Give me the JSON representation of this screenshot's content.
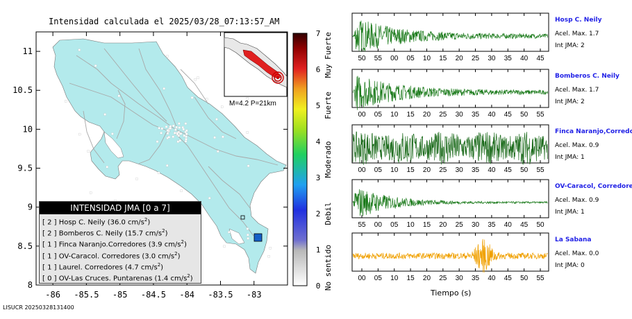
{
  "map": {
    "title": "Intensidad calculada el 2025/03/28_07:13:57_AM",
    "x_ticks": [
      "-86",
      "-85.5",
      "-85",
      "-84.5",
      "-84",
      "-83.5",
      "-83"
    ],
    "y_ticks": [
      "11",
      "10.5",
      "10",
      "9.5",
      "9",
      "8.5",
      "8"
    ],
    "inset_label": "M=4.2 P=21km",
    "bottom_id": "LISUCR 20250328131400",
    "colors": {
      "land": "#b3eaec",
      "sea": "#ffffff",
      "roads": "#a8a8a8",
      "station": "#1560c8"
    }
  },
  "colorbar": {
    "ticks": [
      "0",
      "1",
      "2",
      "3",
      "4",
      "5",
      "6",
      "7"
    ],
    "categories": [
      "No sentido",
      "Debil",
      "Moderado",
      "Fuerte",
      "Muy Fuerte"
    ]
  },
  "legend": {
    "title": "INTENSIDAD JMA [0 a 7]",
    "rows": [
      {
        "jma": "[ 2 ]",
        "text": "Hosp C. Neily (36.0 cm/s",
        "unit_exp": "2",
        "close": ")"
      },
      {
        "jma": "[ 2 ]",
        "text": "Bomberos C. Neily (15.7 cm/s",
        "unit_exp": "2",
        "close": ")"
      },
      {
        "jma": "[ 1 ]",
        "text": "Finca Naranjo.Corredores (3.9 cm/s",
        "unit_exp": "2",
        "close": ")"
      },
      {
        "jma": "[ 1 ]",
        "text": "OV-Caracol. Corredores (3.0 cm/s",
        "unit_exp": "2",
        "close": ")"
      },
      {
        "jma": "[ 1 ]",
        "text": "Laurel. Corredores (4.7 cm/s",
        "unit_exp": "2",
        "close": ")"
      },
      {
        "jma": "[ 0 ]",
        "text": "OV-Las Cruces. Puntarenas (1.4 cm/s",
        "unit_exp": "2",
        "close": ")"
      }
    ]
  },
  "traces": [
    {
      "name": "Hosp C. Neily",
      "accel": "Acel. Max. 1.7",
      "jma": "Int JMA: 2",
      "color": "#1a7a1a",
      "ticks": [
        "50",
        "55",
        "00",
        "05",
        "10",
        "15",
        "20",
        "25",
        "30",
        "35",
        "40",
        "45"
      ],
      "amp": 1.0,
      "envelope": "decay"
    },
    {
      "name": "Bomberos C. Neily",
      "accel": "Acel. Max. 1.7",
      "jma": "Int JMA: 2",
      "color": "#1a7a1a",
      "ticks": [
        "00",
        "05",
        "10",
        "15",
        "20",
        "25",
        "30",
        "35",
        "40",
        "45",
        "50",
        "55"
      ],
      "amp": 1.0,
      "envelope": "decay"
    },
    {
      "name": "Finca Naranjo,Corredores",
      "accel": "Acel. Max. 0.9",
      "jma": "Int JMA: 1",
      "color": "#1a6a1a",
      "ticks": [
        "00",
        "05",
        "10",
        "15",
        "20",
        "25",
        "30",
        "35",
        "40",
        "45",
        "50",
        "55"
      ],
      "amp": 1.0,
      "envelope": "flat"
    },
    {
      "name": "OV-Caracol, Corredores",
      "accel": "Acel. Max. 0.9",
      "jma": "Int JMA: 1",
      "color": "#1a7a1a",
      "ticks": [
        "55",
        "00",
        "05",
        "10",
        "15",
        "20",
        "25",
        "30",
        "35",
        "40",
        "45",
        "50"
      ],
      "amp": 1.0,
      "envelope": "decay2"
    },
    {
      "name": "La Sabana",
      "accel": "Acel. Max. 0.0",
      "jma": "Int JMA: 0",
      "color": "#f0a000",
      "ticks": [
        "00",
        "05",
        "10",
        "15",
        "20",
        "25",
        "30",
        "35",
        "40",
        "45",
        "50",
        "55"
      ],
      "amp": 0.4,
      "envelope": "burst"
    }
  ],
  "time_axis_label": "Tiempo (s)",
  "chart_data": {
    "type": "other",
    "title": "Intensidad calculada el 2025/03/28_07:13:57_AM",
    "xlim": [
      -86.25,
      -82.5
    ],
    "ylim": [
      8.0,
      11.25
    ],
    "event": {
      "lon": -82.7,
      "lat": 8.8,
      "magnitude": 4.2,
      "depth_km": 21
    },
    "colorbar_range": [
      0,
      7
    ],
    "stations_jma": [
      {
        "name": "Hosp C. Neily",
        "jma": 2,
        "pga_cm_s2": 36.0
      },
      {
        "name": "Bomberos C. Neily",
        "jma": 2,
        "pga_cm_s2": 15.7
      },
      {
        "name": "Finca Naranjo.Corredores",
        "jma": 1,
        "pga_cm_s2": 3.9
      },
      {
        "name": "OV-Caracol. Corredores",
        "jma": 1,
        "pga_cm_s2": 3.0
      },
      {
        "name": "Laurel. Corredores",
        "jma": 1,
        "pga_cm_s2": 4.7
      },
      {
        "name": "OV-Las Cruces. Puntarenas",
        "jma": 0,
        "pga_cm_s2": 1.4
      }
    ]
  }
}
